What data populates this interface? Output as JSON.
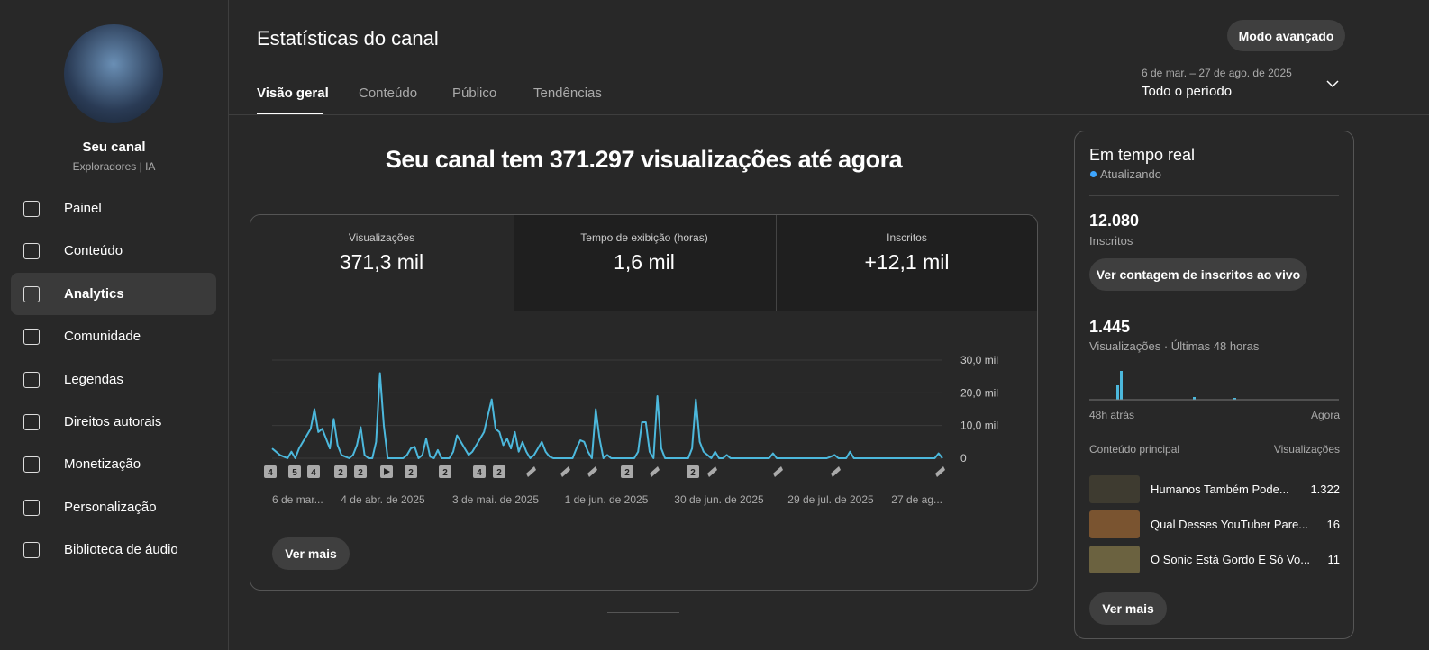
{
  "sidebar": {
    "channel_name": "Seu canal",
    "channel_subtitle": "Exploradores | IA",
    "menu": [
      "Painel",
      "Conteúdo",
      "Analytics",
      "Comunidade",
      "Legendas",
      "Direitos autorais",
      "Monetização",
      "Personalização",
      "Biblioteca de áudio"
    ]
  },
  "header": {
    "title": "Estatísticas do canal",
    "advanced_button": "Modo avançado",
    "tabs": [
      "Visão geral",
      "Conteúdo",
      "Público",
      "Tendências"
    ],
    "date_range": "6 de mar. – 27 de ago. de 2025",
    "period": "Todo o período"
  },
  "overview": {
    "headline": "Seu canal tem 371.297 visualizações até agora",
    "metrics": [
      {
        "label": "Visualizações",
        "value": "371,3 mil"
      },
      {
        "label": "Tempo de exibição (horas)",
        "value": "1,6 mil"
      },
      {
        "label": "Inscritos",
        "value": "+12,1 mil"
      }
    ],
    "see_more": "Ver mais"
  },
  "chart_data": {
    "type": "line",
    "color": "#4cb8dc",
    "x_labels": [
      "6 de mar...",
      "4 de abr. de 2025",
      "3 de mai. de 2025",
      "1 de jun. de 2025",
      "30 de jun. de 2025",
      "29 de jul. de 2025",
      "27 de ag..."
    ],
    "values": [
      3000,
      2000,
      1000,
      500,
      0,
      2000,
      0,
      3000,
      5000,
      7000,
      9000,
      15000,
      8000,
      9000,
      6000,
      3000,
      12000,
      4000,
      1000,
      500,
      0,
      1000,
      4000,
      9500,
      1000,
      0,
      0,
      5000,
      26000,
      10000,
      0,
      0,
      0,
      0,
      0,
      1000,
      3000,
      3500,
      0,
      1000,
      6000,
      500,
      0,
      2500,
      0,
      0,
      0,
      2000,
      7000,
      5000,
      3000,
      1000,
      2000,
      4000,
      6000,
      8000,
      13000,
      18000,
      9000,
      8000,
      4000,
      6000,
      3000,
      8000,
      2000,
      5000,
      2000,
      0,
      1000,
      3000,
      5000,
      2000,
      500,
      0,
      0,
      0,
      0,
      0,
      0,
      3000,
      5500,
      5000,
      2000,
      0,
      15000,
      6000,
      0,
      1000,
      0,
      0,
      0,
      0,
      0,
      0,
      0,
      2000,
      11000,
      11000,
      2000,
      0,
      19000,
      3000,
      0,
      0,
      0,
      0,
      0,
      0,
      0,
      3000,
      18000,
      5000,
      2000,
      1000,
      0,
      2000,
      0,
      0,
      1000,
      0,
      0,
      0,
      0,
      0,
      0,
      0,
      0,
      0,
      0,
      0,
      1500,
      0,
      0,
      0,
      0,
      0,
      0,
      0,
      0,
      0,
      0,
      0,
      0,
      0,
      0,
      500,
      1000,
      0,
      0,
      0,
      2000,
      0,
      0,
      0,
      0,
      0,
      0,
      0,
      0,
      0,
      0,
      0,
      0,
      0,
      0,
      0,
      0,
      0,
      0,
      0,
      0,
      0,
      0,
      1500,
      0
    ],
    "ylim": [
      0,
      30000
    ],
    "yticks": [
      0,
      {
        "value": 10000,
        "label": "10,0 mil"
      },
      {
        "value": 20000,
        "label": "20,0 mil"
      },
      {
        "value": 30000,
        "label": "30,0 mil"
      }
    ],
    "grid": true,
    "video_markers": [
      "4",
      "5",
      "4",
      "2",
      "2",
      "2",
      "2",
      "4",
      "2",
      "2",
      "2"
    ]
  },
  "realtime": {
    "title": "Em tempo real",
    "status": "Atualizando",
    "subscribers": "12.080",
    "subscribers_label": "Inscritos",
    "live_button": "Ver contagem de inscritos ao vivo",
    "views": "1.445",
    "views_label": "Visualizações · Últimas 48 horas",
    "axis_start": "48h atrás",
    "axis_end": "Agora",
    "top_header": [
      "Conteúdo principal",
      "Visualizações"
    ],
    "top_content": [
      {
        "title": "Humanos Também Pode...",
        "views": "1.322"
      },
      {
        "title": "Qual Desses YouTuber Pare...",
        "views": "16"
      },
      {
        "title": "O Sonic Está Gordo E Só Vo...",
        "views": "11"
      }
    ],
    "see_more": "Ver mais"
  }
}
